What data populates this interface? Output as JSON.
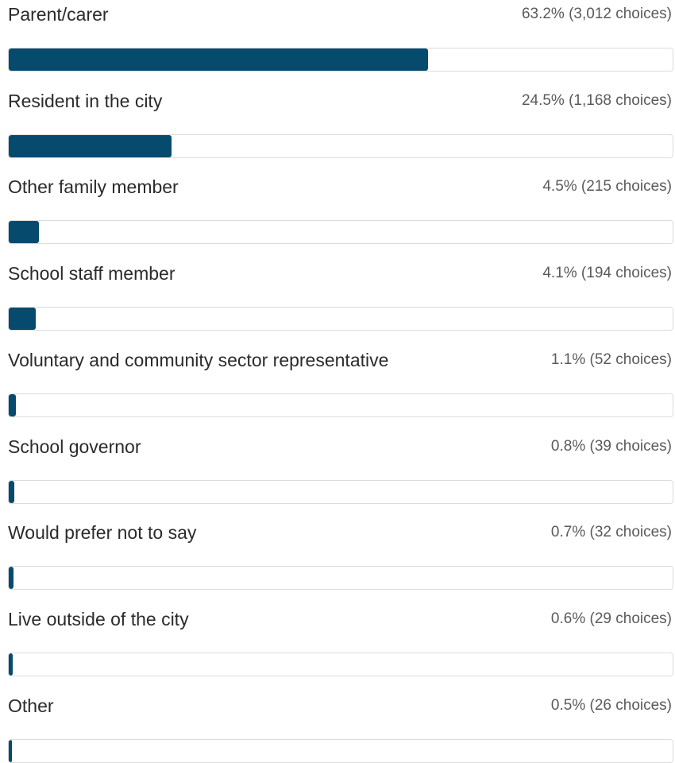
{
  "chart_data": {
    "type": "bar",
    "orientation": "horizontal",
    "categories": [
      "Parent/carer",
      "Resident in the city",
      "Other family member",
      "School staff member",
      "Voluntary and community sector representative",
      "School governor",
      "Would prefer not to say",
      "Live outside of the city",
      "Other"
    ],
    "values": [
      63.2,
      24.5,
      4.5,
      4.1,
      1.1,
      0.8,
      0.7,
      0.6,
      0.5
    ],
    "value_labels": [
      "63.2% (3,012 choices)",
      "24.5% (1,168 choices)",
      "4.5% (215 choices)",
      "4.1% (194 choices)",
      "1.1% (52 choices)",
      "0.8% (39 choices)",
      "0.7% (32 choices)",
      "0.6% (29 choices)",
      "0.5% (26 choices)"
    ],
    "color": "#064a6e",
    "xlim": [
      0,
      100
    ]
  }
}
